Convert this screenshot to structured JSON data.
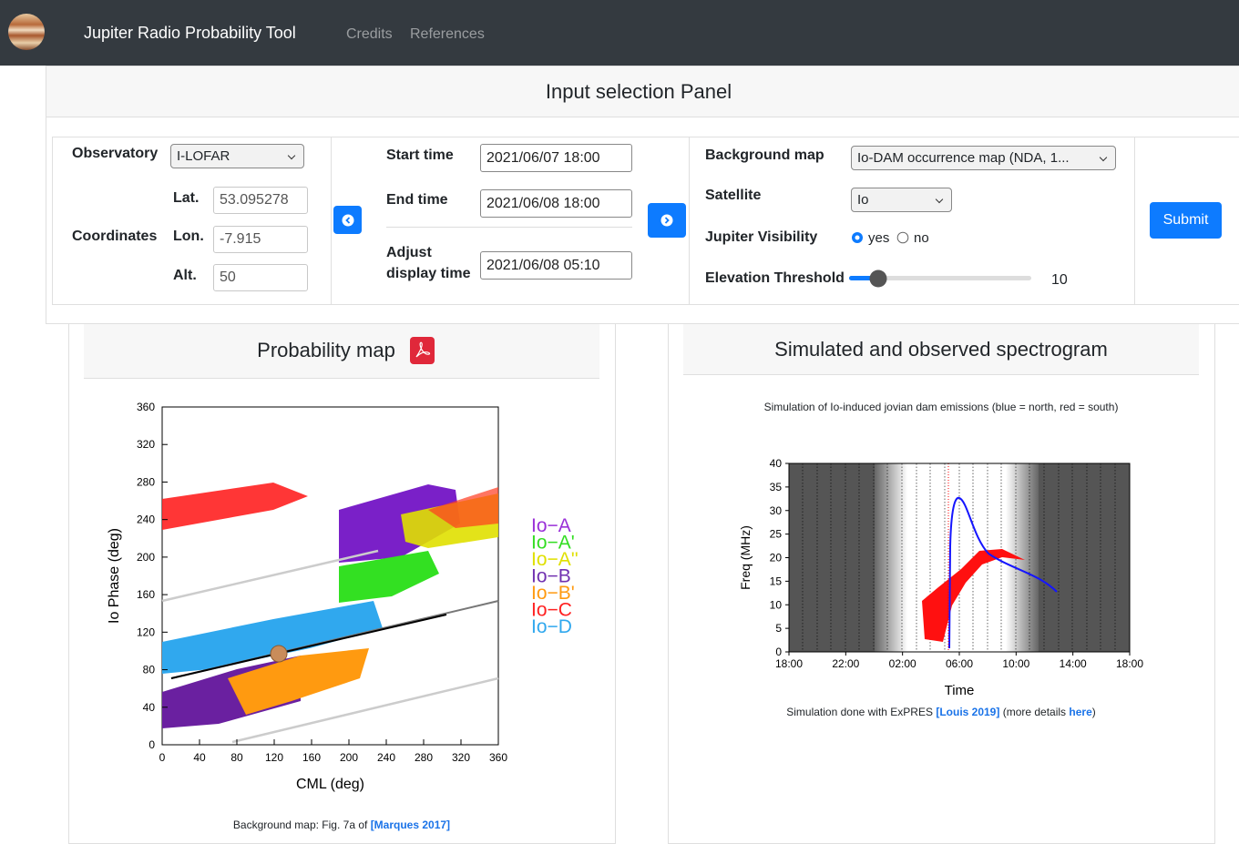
{
  "navbar": {
    "brand": "Jupiter Radio Probability Tool",
    "links": [
      "Credits",
      "References"
    ]
  },
  "input_panel": {
    "title": "Input selection Panel",
    "observatory": {
      "label": "Observatory",
      "value": "I-LOFAR",
      "coordinates_label": "Coordinates",
      "lat_label": "Lat.",
      "lat": "53.095278",
      "lon_label": "Lon.",
      "lon": "-7.915",
      "alt_label": "Alt.",
      "alt": "50"
    },
    "time": {
      "start_label": "Start time",
      "start": "2021/06/07 18:00",
      "end_label": "End time",
      "end": "2021/06/08 18:00",
      "adjust_label": "Adjust display time",
      "adjust": "2021/06/08 05:10"
    },
    "options": {
      "background_label": "Background map",
      "background": "Io-DAM occurrence map (NDA, 1...",
      "satellite_label": "Satellite",
      "satellite": "Io",
      "visibility_label": "Jupiter Visibility",
      "yes": "yes",
      "no": "no",
      "elevation_label": "Elevation Threshold",
      "elevation": 10
    },
    "submit": "Submit"
  },
  "probability_map": {
    "title": "Probability map",
    "chart_data": {
      "type": "map",
      "xlabel": "CML (deg)",
      "ylabel": "Io Phase (deg)",
      "xlim": [
        0,
        360
      ],
      "xticks": [
        0,
        40,
        80,
        120,
        160,
        200,
        240,
        280,
        320,
        360
      ],
      "ylim": [
        0,
        360
      ],
      "yticks": [
        0,
        40,
        80,
        120,
        160,
        200,
        240,
        280,
        320,
        360
      ],
      "legend": [
        {
          "name": "Io−A",
          "color": "#9a30d8"
        },
        {
          "name": "Io−A'",
          "color": "#33dd22"
        },
        {
          "name": "Io−A''",
          "color": "#e0e000"
        },
        {
          "name": "Io−B",
          "color": "#7030b0"
        },
        {
          "name": "Io−B'",
          "color": "#ff9a10"
        },
        {
          "name": "Io−C",
          "color": "#ff2020"
        },
        {
          "name": "Io−D",
          "color": "#30a8ee"
        }
      ]
    },
    "caption": "Background map: Fig. 7a of",
    "caption_link": "[Marques 2017]"
  },
  "spectrogram": {
    "title": "Simulated and observed spectrogram",
    "chart_data": {
      "type": "spectrogram",
      "title": "Simulation of Io-induced jovian dam emissions (blue = north, red = south)",
      "xlabel": "Time",
      "ylabel": "Freq (MHz)",
      "categories": [
        "18:00",
        "22:00",
        "02:00",
        "06:00",
        "10:00",
        "14:00",
        "18:00"
      ],
      "ylim": [
        0,
        40
      ],
      "yticks": [
        0,
        5,
        10,
        15,
        20,
        25,
        30,
        35,
        40
      ]
    },
    "caption": "Simulation done with ExPRES",
    "caption_link": "[Louis 2019]",
    "caption_more": "(more details",
    "caption_here": "here",
    "caption_end": ")"
  }
}
